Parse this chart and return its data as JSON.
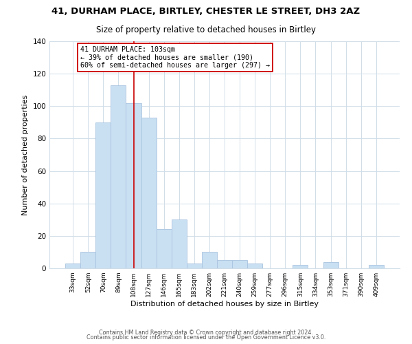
{
  "title": "41, DURHAM PLACE, BIRTLEY, CHESTER LE STREET, DH3 2AZ",
  "subtitle": "Size of property relative to detached houses in Birtley",
  "xlabel": "Distribution of detached houses by size in Birtley",
  "ylabel": "Number of detached properties",
  "bar_labels": [
    "33sqm",
    "52sqm",
    "70sqm",
    "89sqm",
    "108sqm",
    "127sqm",
    "146sqm",
    "165sqm",
    "183sqm",
    "202sqm",
    "221sqm",
    "240sqm",
    "259sqm",
    "277sqm",
    "296sqm",
    "315sqm",
    "334sqm",
    "353sqm",
    "371sqm",
    "390sqm",
    "409sqm"
  ],
  "bar_values": [
    3,
    10,
    90,
    113,
    102,
    93,
    24,
    30,
    3,
    10,
    5,
    5,
    3,
    0,
    0,
    2,
    0,
    4,
    0,
    0,
    2
  ],
  "bar_color": "#c9dff2",
  "bar_edge_color": "#a8c4e0",
  "vline_color": "#cc0000",
  "vline_index": 4,
  "annotation_text": "41 DURHAM PLACE: 103sqm\n← 39% of detached houses are smaller (190)\n60% of semi-detached houses are larger (297) →",
  "annotation_box_color": "#ffffff",
  "annotation_box_edge": "#cc0000",
  "ylim": [
    0,
    140
  ],
  "yticks": [
    0,
    20,
    40,
    60,
    80,
    100,
    120,
    140
  ],
  "footer_line1": "Contains HM Land Registry data © Crown copyright and database right 2024.",
  "footer_line2": "Contains public sector information licensed under the Open Government Licence v3.0.",
  "background_color": "#ffffff",
  "grid_color": "#d0dde8",
  "title_fontsize": 9.5,
  "subtitle_fontsize": 8.5
}
